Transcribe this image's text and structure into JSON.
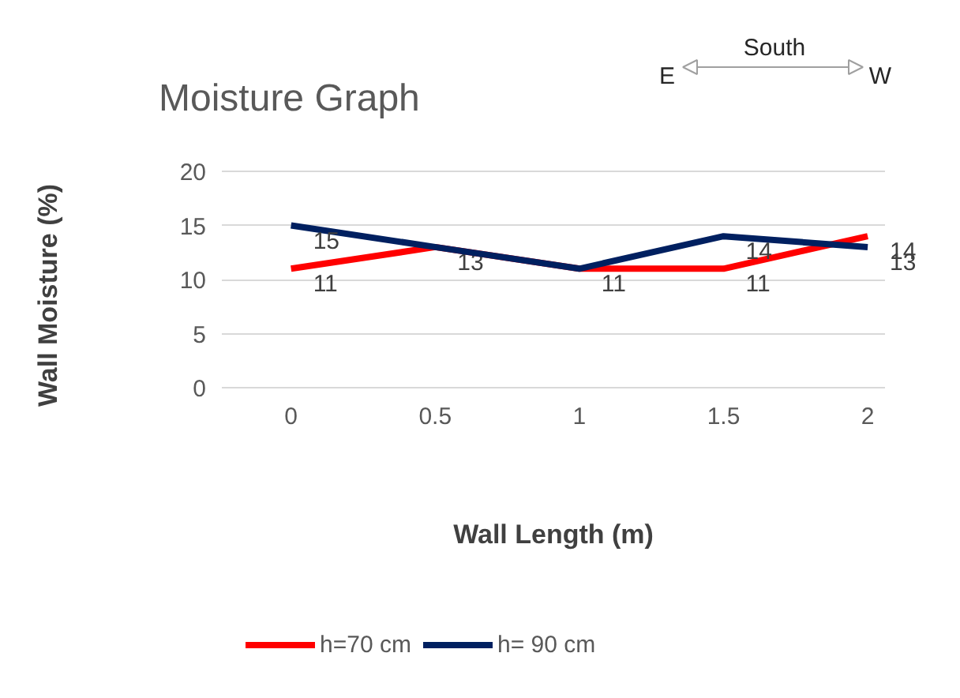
{
  "chart_data": {
    "type": "line",
    "title": "Moisture Graph",
    "xlabel": "Wall Length (m)",
    "ylabel": "Wall Moisture (%)",
    "categories": [
      "0",
      "0.5",
      "1",
      "1.5",
      "2"
    ],
    "series": [
      {
        "name": "h=70 cm",
        "color": "#ff0000",
        "values": [
          11,
          13,
          11,
          11,
          14
        ],
        "value_labels": [
          "11",
          "13",
          "11",
          "11",
          "14"
        ]
      },
      {
        "name": "h= 90 cm",
        "color": "#002060",
        "values": [
          15,
          13,
          11,
          14,
          13
        ],
        "value_labels": [
          "15",
          null,
          null,
          "14",
          "13"
        ]
      }
    ],
    "ylim": [
      0,
      20
    ],
    "yticks": [
      0,
      5,
      10,
      15,
      20
    ],
    "grid": "y",
    "legend": "bottom",
    "marker": "none",
    "line_style": "solid",
    "annotations": [
      "E",
      "South",
      "W"
    ]
  }
}
